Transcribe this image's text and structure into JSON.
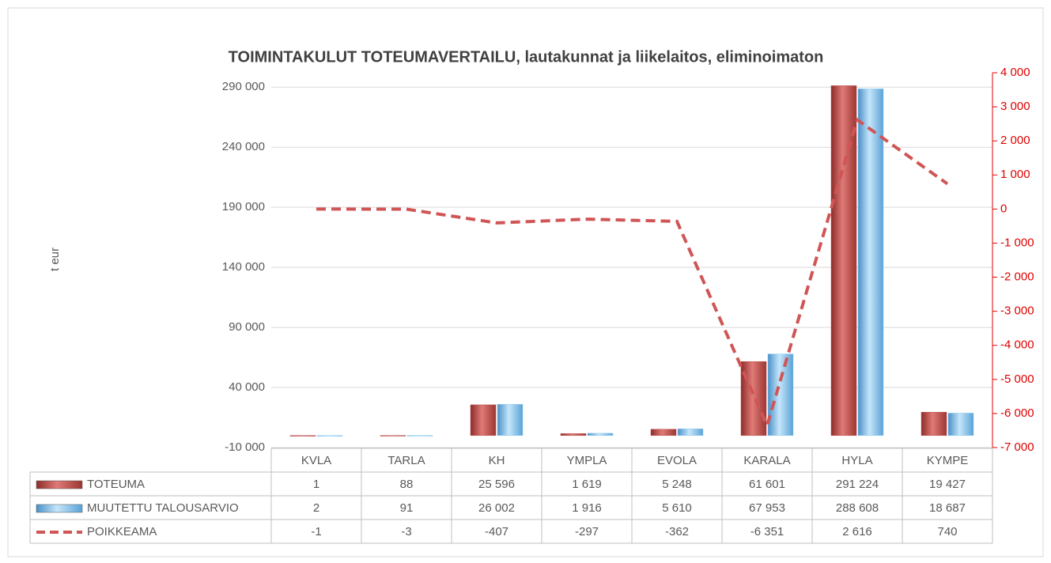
{
  "chart_data": {
    "type": "bar",
    "title": "TOIMINTAKULUT TOTEUMAVERTAILU, lautakunnat ja liikelaitos, eliminoimaton",
    "y_label": "t eur",
    "categories": [
      "KVLA",
      "TARLA",
      "KH",
      "YMPLA",
      "EVOLA",
      "KARALA",
      "HYLA",
      "KYMPE"
    ],
    "series": [
      {
        "name": "TOTEUMA",
        "color": "#c0504d",
        "type": "bar",
        "values": [
          1,
          88,
          25596,
          1619,
          5248,
          61601,
          291224,
          19427
        ],
        "value_labels": [
          "1",
          "88",
          "25 596",
          "1 619",
          "5 248",
          "61 601",
          "291 224",
          "19 427"
        ]
      },
      {
        "name": "MUUTETTU TALOUSARVIO",
        "color": "#8ecdf2",
        "type": "bar",
        "values": [
          2,
          91,
          26002,
          1916,
          5610,
          67953,
          288608,
          18687
        ],
        "value_labels": [
          "2",
          "91",
          "26 002",
          "1 916",
          "5 610",
          "67 953",
          "288 608",
          "18 687"
        ]
      },
      {
        "name": "POIKKEAMA",
        "color": "#d05555",
        "type": "line",
        "axis": "y2",
        "values": [
          -1,
          -3,
          -407,
          -297,
          -362,
          -6351,
          2616,
          740
        ],
        "value_labels": [
          "-1",
          "-3",
          "-407",
          "-297",
          "-362",
          "-6 351",
          "2 616",
          "740"
        ]
      }
    ],
    "ylim": [
      -10000,
      302000
    ],
    "yticks": [
      {
        "value": -10000,
        "label": "-10 000"
      },
      {
        "value": 40000,
        "label": "40 000"
      },
      {
        "value": 90000,
        "label": "90 000"
      },
      {
        "value": 140000,
        "label": "140 000"
      },
      {
        "value": 190000,
        "label": "190 000"
      },
      {
        "value": 240000,
        "label": "240 000"
      },
      {
        "value": 290000,
        "label": "290 000"
      }
    ],
    "y2lim": [
      -7000,
      4000
    ],
    "y2ticks": [
      {
        "value": -7000,
        "label": "-7 000"
      },
      {
        "value": -6000,
        "label": "-6 000"
      },
      {
        "value": -5000,
        "label": "-5 000"
      },
      {
        "value": -4000,
        "label": "-4 000"
      },
      {
        "value": -3000,
        "label": "-3 000"
      },
      {
        "value": -2000,
        "label": "-2 000"
      },
      {
        "value": -1000,
        "label": "-1 000"
      },
      0,
      {
        "value": 1000,
        "label": "1 000"
      },
      {
        "value": 2000,
        "label": "2 000"
      },
      {
        "value": 3000,
        "label": "3 000"
      },
      {
        "value": 4000,
        "label": "4 000"
      }
    ],
    "grid": true
  }
}
